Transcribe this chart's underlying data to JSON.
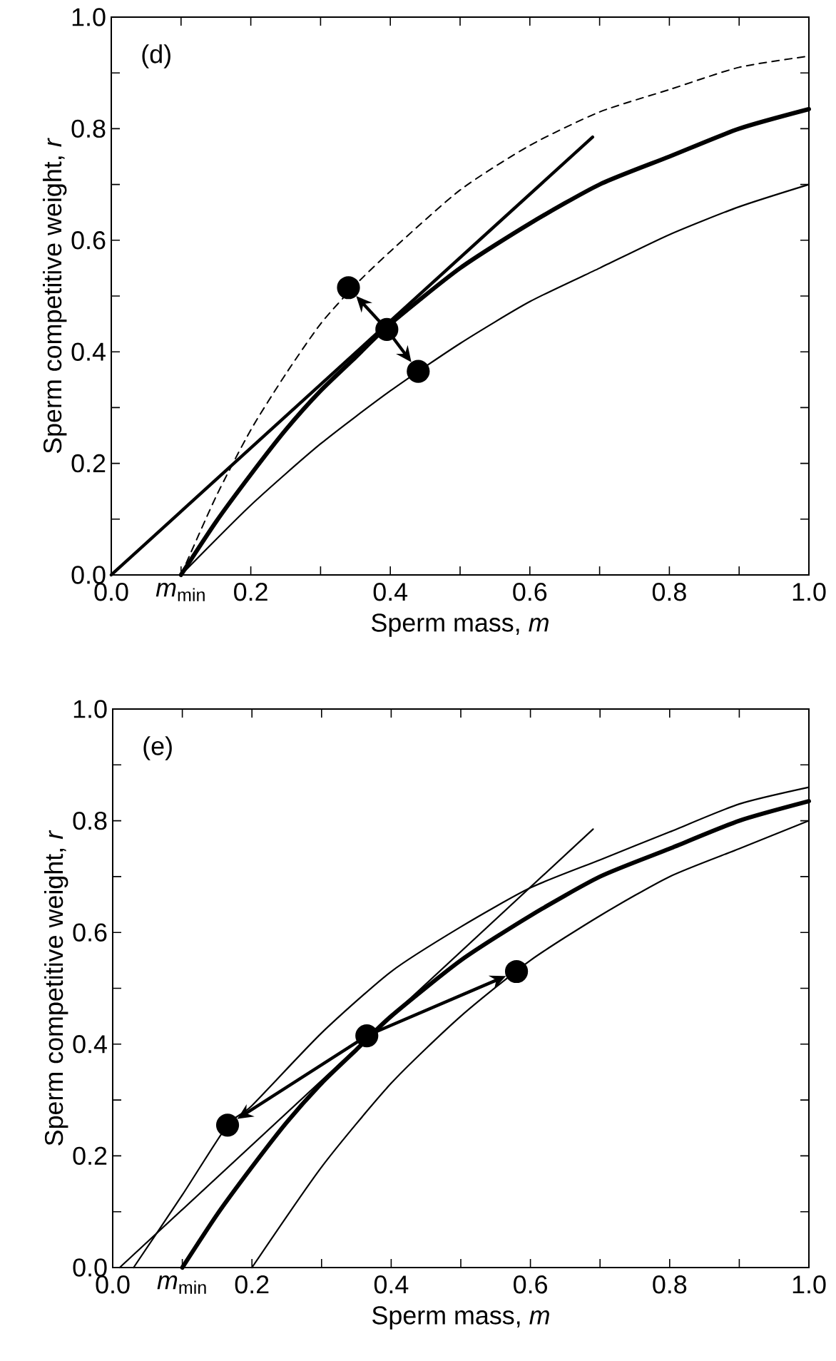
{
  "chart_data": [
    {
      "type": "line",
      "annotations": [
        "(d)"
      ],
      "xlabel": "Sperm mass, *m*",
      "ylabel": "Sperm competitive weight, *r*",
      "xlim": [
        0,
        1
      ],
      "ylim": [
        0,
        1
      ],
      "xticks": [
        {
          "value": 0,
          "label": "0.0"
        },
        {
          "value": 0.1,
          "label": "*m*$_{min}$"
        },
        0.2,
        {
          "value": 0.3,
          "label": null
        },
        0.4,
        {
          "value": 0.5,
          "label": null
        },
        0.6,
        {
          "value": 0.7,
          "label": null
        },
        0.8,
        {
          "value": 0.9,
          "label": null
        },
        {
          "value": 1,
          "label": "1.0"
        }
      ],
      "yticks": [
        {
          "value": 0,
          "label": "0.0"
        },
        {
          "value": 0.1,
          "label": null
        },
        0.2,
        {
          "value": 0.3,
          "label": null
        },
        0.4,
        {
          "value": 0.5,
          "label": null
        },
        0.6,
        {
          "value": 0.7,
          "label": null
        },
        0.8,
        {
          "value": 0.9,
          "label": null
        },
        {
          "value": 1,
          "label": "1.0"
        }
      ],
      "series": [
        {
          "color": "#000000",
          "x": [
            0.1,
            0.15,
            0.2,
            0.25,
            0.3,
            0.35,
            0.4,
            0.5,
            0.6,
            0.7,
            0.8,
            0.9,
            1.0
          ],
          "values": [
            0,
            0.095,
            0.18,
            0.26,
            0.33,
            0.39,
            0.45,
            0.55,
            0.63,
            0.7,
            0.75,
            0.8,
            0.835
          ]
        },
        {
          "color": "#000000",
          "line_style": "dashed",
          "x": [
            0.1,
            0.15,
            0.2,
            0.25,
            0.3,
            0.35,
            0.4,
            0.5,
            0.6,
            0.7,
            0.8,
            0.9,
            1.0
          ],
          "values": [
            0,
            0.14,
            0.26,
            0.36,
            0.45,
            0.52,
            0.58,
            0.69,
            0.77,
            0.83,
            0.87,
            0.91,
            0.93
          ]
        },
        {
          "color": "#000000",
          "x": [
            0.1,
            0.2,
            0.3,
            0.4,
            0.5,
            0.6,
            0.7,
            0.8,
            0.9,
            1.0
          ],
          "values": [
            0,
            0.125,
            0.235,
            0.33,
            0.415,
            0.49,
            0.55,
            0.61,
            0.66,
            0.7
          ]
        },
        {
          "color": "#000000",
          "x": [
            0,
            0.69
          ],
          "values": [
            0,
            0.785
          ]
        },
        {
          "type": "scatter",
          "marker": "circle",
          "color": "#000000",
          "x": [
            0.34,
            0.395,
            0.44
          ],
          "values": [
            0.515,
            0.44,
            0.365
          ]
        }
      ]
    },
    {
      "type": "line",
      "annotations": [
        "(e)"
      ],
      "xlabel": "Sperm mass, *m*",
      "ylabel": "Sperm competitive weight, *r*",
      "xlim": [
        0,
        1
      ],
      "ylim": [
        0,
        1
      ],
      "xticks": [
        {
          "value": 0,
          "label": "0.0"
        },
        {
          "value": 0.1,
          "label": "*m*$_{min}$"
        },
        0.2,
        {
          "value": 0.3,
          "label": null
        },
        0.4,
        {
          "value": 0.5,
          "label": null
        },
        0.6,
        {
          "value": 0.7,
          "label": null
        },
        0.8,
        {
          "value": 0.9,
          "label": null
        },
        {
          "value": 1,
          "label": "1.0"
        }
      ],
      "yticks": [
        {
          "value": 0,
          "label": "0.0"
        },
        {
          "value": 0.1,
          "label": null
        },
        0.2,
        {
          "value": 0.3,
          "label": null
        },
        0.4,
        {
          "value": 0.5,
          "label": null
        },
        0.6,
        {
          "value": 0.7,
          "label": null
        },
        0.8,
        {
          "value": 0.9,
          "label": null
        },
        {
          "value": 1,
          "label": "1.0"
        }
      ],
      "series": [
        {
          "color": "#000000",
          "x": [
            0.1,
            0.15,
            0.2,
            0.25,
            0.3,
            0.35,
            0.4,
            0.5,
            0.6,
            0.7,
            0.8,
            0.9,
            1.0
          ],
          "values": [
            0,
            0.095,
            0.18,
            0.26,
            0.33,
            0.39,
            0.45,
            0.55,
            0.63,
            0.7,
            0.75,
            0.8,
            0.835
          ]
        },
        {
          "color": "#000000",
          "x": [
            0.03,
            0.1,
            0.165,
            0.2,
            0.3,
            0.4,
            0.5,
            0.6,
            0.7,
            0.8,
            0.9,
            1.0
          ],
          "values": [
            0,
            0.13,
            0.255,
            0.29,
            0.42,
            0.53,
            0.61,
            0.68,
            0.73,
            0.78,
            0.83,
            0.86
          ]
        },
        {
          "color": "#000000",
          "x": [
            0.2,
            0.3,
            0.4,
            0.5,
            0.6,
            0.7,
            0.8,
            0.9,
            1.0
          ],
          "values": [
            0,
            0.18,
            0.33,
            0.45,
            0.55,
            0.63,
            0.7,
            0.75,
            0.8
          ]
        },
        {
          "color": "#000000",
          "x": [
            0.01,
            0.69
          ],
          "values": [
            0,
            0.785
          ]
        },
        {
          "type": "scatter",
          "marker": "circle",
          "color": "#000000",
          "x": [
            0.165,
            0.365,
            0.58
          ],
          "values": [
            0.255,
            0.415,
            0.53
          ]
        }
      ]
    }
  ]
}
